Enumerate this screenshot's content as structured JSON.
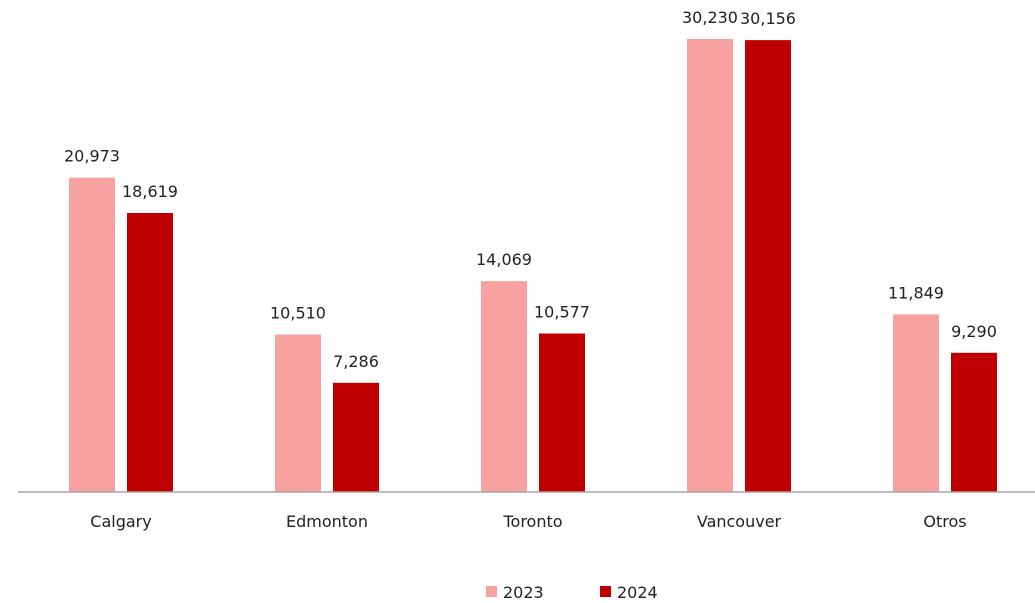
{
  "chart_data": {
    "type": "bar",
    "categories": [
      "Calgary",
      "Edmonton",
      "Toronto",
      "Vancouver",
      "Otros"
    ],
    "series": [
      {
        "name": "2023",
        "values": [
          20973,
          10510,
          14069,
          30230,
          11849
        ],
        "labels": [
          "20,973",
          "10,510",
          "14,069",
          "30,230",
          "11,849"
        ]
      },
      {
        "name": "2024",
        "values": [
          18619,
          7286,
          10577,
          30156,
          9290
        ],
        "labels": [
          "18,619",
          "7,286",
          "10,577",
          "30,156",
          "9,290"
        ]
      }
    ],
    "colors": {
      "2023": "#f7a1a1",
      "2024": "#c00000",
      "axis": "#a6a6a6"
    },
    "title": "",
    "xlabel": "",
    "ylabel": "",
    "ylim": [
      0,
      30230
    ],
    "grid": false,
    "legend": "bottom-center",
    "y_axis_visible": false
  }
}
